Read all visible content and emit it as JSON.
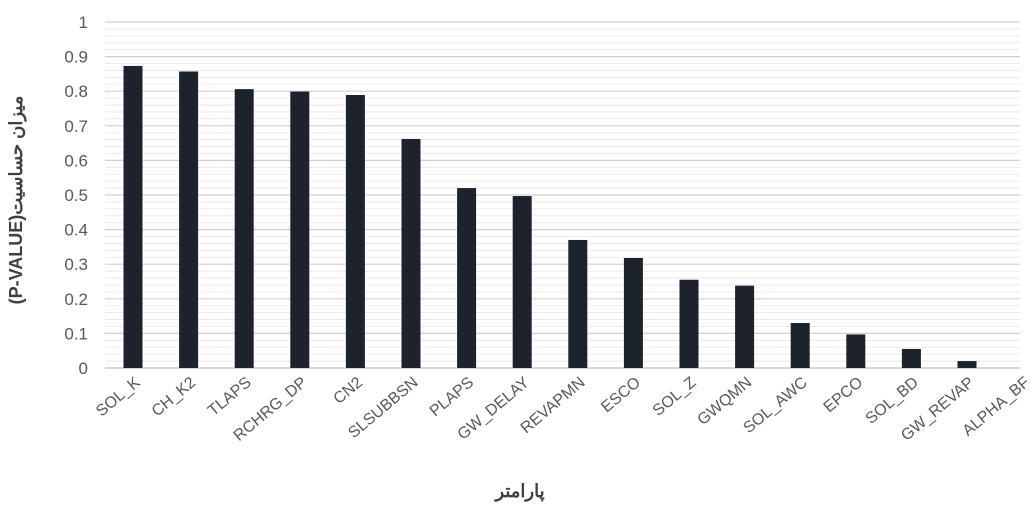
{
  "chart_data": {
    "type": "bar",
    "categories": [
      "SOL_K",
      "CH_K2",
      "TLAPS",
      "RCHRG_DP",
      "CN2",
      "SLSUBBSN",
      "PLAPS",
      "GW_DELAY",
      "REVAPMN",
      "ESCO",
      "SOL_Z",
      "GWQMN",
      "SOL_AWC",
      "EPCO",
      "SOL_BD",
      "GW_REVAP",
      "ALPHA_BF"
    ],
    "values": [
      0.873,
      0.857,
      0.806,
      0.799,
      0.789,
      0.662,
      0.52,
      0.497,
      0.37,
      0.318,
      0.255,
      0.238,
      0.13,
      0.097,
      0.055,
      0.02,
      0.0
    ],
    "title": "",
    "xlabel": "پارامتر",
    "ylabel": "میزان حساسیت(P-VALUE)",
    "ylim": [
      0,
      1
    ],
    "yticks": [
      "0",
      "0.1",
      "0.2",
      "0.3",
      "0.4",
      "0.5",
      "0.6",
      "0.7",
      "0.8",
      "0.9",
      "1"
    ],
    "grid": true,
    "legend": "none",
    "colors": {
      "bar": "#1c232c",
      "major_grid": "#d0d0d0",
      "minor_grid": "#e6e6e6",
      "axis_line": "#bfbfbf",
      "text": "#595959"
    }
  }
}
